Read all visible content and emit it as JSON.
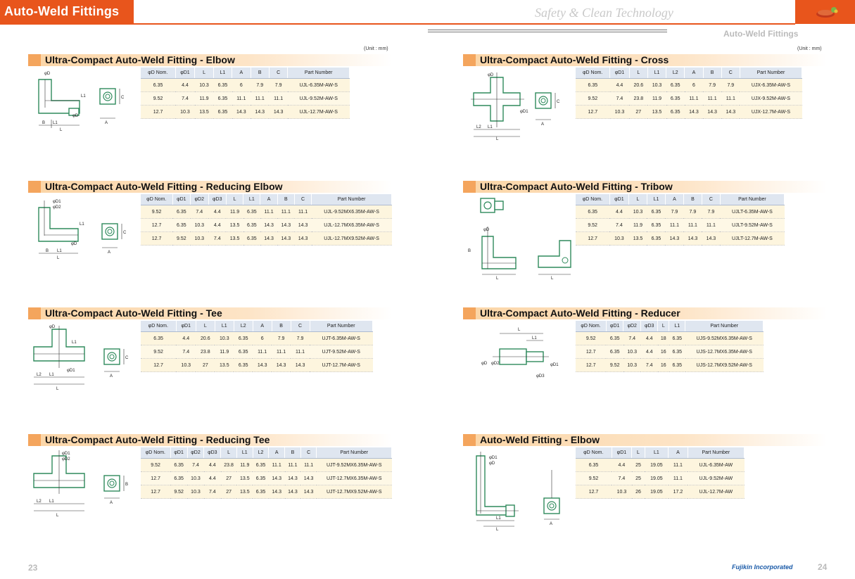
{
  "header": {
    "tab_title": "Auto-Weld Fittings",
    "tagline": "Safety & Clean Technology",
    "right_running_title": "Auto-Weld Fittings",
    "colors": {
      "accent": "#e8551c",
      "section_bar": "#f4a55d",
      "section_fill": "#fbd5a6",
      "table_header": "#dfe6f0",
      "table_row": "#fdf5de"
    },
    "logo_icon": "product-logo-icon"
  },
  "unit_label": "(Unit : mm)",
  "sections": [
    {
      "title": "Ultra-Compact Auto-Weld Fitting - Elbow",
      "columns": [
        "φD Nom.",
        "φD1",
        "L",
        "L1",
        "A",
        "B",
        "C",
        "Part Number"
      ],
      "rows": [
        [
          "6.35",
          "4.4",
          "10.3",
          "6.35",
          "6",
          "7.9",
          "7.9",
          "UJL-6.35M-AW-S"
        ],
        [
          "9.52",
          "7.4",
          "11.9",
          "6.35",
          "11.1",
          "11.1",
          "11.1",
          "UJL-9.52M-AW-S"
        ],
        [
          "12.7",
          "10.3",
          "13.5",
          "6.35",
          "14.3",
          "14.3",
          "14.3",
          "UJL-12.7M-AW-S"
        ]
      ]
    },
    {
      "title": "Ultra-Compact Auto-Weld Fitting - Reducing Elbow",
      "columns": [
        "φD Nom.",
        "φD1",
        "φD2",
        "φD3",
        "L",
        "L1",
        "A",
        "B",
        "C",
        "Part Number"
      ],
      "rows": [
        [
          "9.52",
          "6.35",
          "7.4",
          "4.4",
          "11.9",
          "6.35",
          "11.1",
          "11.1",
          "11.1",
          "UJL-9.52MX6.35M-AW-S"
        ],
        [
          "12.7",
          "6.35",
          "10.3",
          "4.4",
          "13.5",
          "6.35",
          "14.3",
          "14.3",
          "14.3",
          "UJL-12.7MX6.35M-AW-S"
        ],
        [
          "12.7",
          "9.52",
          "10.3",
          "7.4",
          "13.5",
          "6.35",
          "14.3",
          "14.3",
          "14.3",
          "UJL-12.7MX9.52M-AW-S"
        ]
      ]
    },
    {
      "title": "Ultra-Compact Auto-Weld Fitting - Tee",
      "columns": [
        "φD Nom.",
        "φD1",
        "L",
        "L1",
        "L2",
        "A",
        "B",
        "C",
        "Part Number"
      ],
      "rows": [
        [
          "6.35",
          "4.4",
          "20.6",
          "10.3",
          "6.35",
          "6",
          "7.9",
          "7.9",
          "UJT-6.35M-AW-S"
        ],
        [
          "9.52",
          "7.4",
          "23.8",
          "11.9",
          "6.35",
          "11.1",
          "11.1",
          "11.1",
          "UJT-9.52M-AW-S"
        ],
        [
          "12.7",
          "10.3",
          "27",
          "13.5",
          "6.35",
          "14.3",
          "14.3",
          "14.3",
          "UJT-12.7M-AW-S"
        ]
      ]
    },
    {
      "title": "Ultra-Compact Auto-Weld Fitting - Reducing Tee",
      "columns": [
        "φD Nom.",
        "φD1",
        "φD2",
        "φD3",
        "L",
        "L1",
        "L2",
        "A",
        "B",
        "C",
        "Part Number"
      ],
      "rows": [
        [
          "9.52",
          "6.35",
          "7.4",
          "4.4",
          "23.8",
          "11.9",
          "6.35",
          "11.1",
          "11.1",
          "11.1",
          "UJT-9.52MX6.35M-AW-S"
        ],
        [
          "12.7",
          "6.35",
          "10.3",
          "4.4",
          "27",
          "13.5",
          "6.35",
          "14.3",
          "14.3",
          "14.3",
          "UJT-12.7MX6.35M-AW-S"
        ],
        [
          "12.7",
          "9.52",
          "10.3",
          "7.4",
          "27",
          "13.5",
          "6.35",
          "14.3",
          "14.3",
          "14.3",
          "UJT-12.7MX9.52M-AW-S"
        ]
      ]
    },
    {
      "title": "Ultra-Compact Auto-Weld Fitting - Cross",
      "columns": [
        "φD Nom.",
        "φD1",
        "L",
        "L1",
        "L2",
        "A",
        "B",
        "C",
        "Part Number"
      ],
      "rows": [
        [
          "6.35",
          "4.4",
          "20.6",
          "10.3",
          "6.35",
          "6",
          "7.9",
          "7.9",
          "UJX-6.35M-AW-S"
        ],
        [
          "9.52",
          "7.4",
          "23.8",
          "11.9",
          "6.35",
          "11.1",
          "11.1",
          "11.1",
          "UJX-9.52M-AW-S"
        ],
        [
          "12.7",
          "10.3",
          "27",
          "13.5",
          "6.35",
          "14.3",
          "14.3",
          "14.3",
          "UJX-12.7M-AW-S"
        ]
      ]
    },
    {
      "title": "Ultra-Compact Auto-Weld Fitting - Tribow",
      "columns": [
        "φD Nom.",
        "φD1",
        "L",
        "L1",
        "A",
        "B",
        "C",
        "Part Number"
      ],
      "rows": [
        [
          "6.35",
          "4.4",
          "10.3",
          "6.35",
          "7.9",
          "7.9",
          "7.9",
          "UJLT-6.35M-AW-S"
        ],
        [
          "9.52",
          "7.4",
          "11.9",
          "6.35",
          "11.1",
          "11.1",
          "11.1",
          "UJLT-9.52M-AW-S"
        ],
        [
          "12.7",
          "10.3",
          "13.5",
          "6.35",
          "14.3",
          "14.3",
          "14.3",
          "UJLT-12.7M-AW-S"
        ]
      ]
    },
    {
      "title": "Ultra-Compact Auto-Weld Fitting - Reducer",
      "columns": [
        "φD Nom.",
        "φD1",
        "φD2",
        "φD3",
        "L",
        "L1",
        "Part Number"
      ],
      "rows": [
        [
          "9.52",
          "6.35",
          "7.4",
          "4.4",
          "18",
          "6.35",
          "UJS-9.52MX6.35M-AW-S"
        ],
        [
          "12.7",
          "6.35",
          "10.3",
          "4.4",
          "16",
          "6.35",
          "UJS-12.7MX6.35M-AW-S"
        ],
        [
          "12.7",
          "9.52",
          "10.3",
          "7.4",
          "16",
          "6.35",
          "UJS-12.7MX9.52M-AW-S"
        ]
      ]
    },
    {
      "title": "Auto-Weld Fitting - Elbow",
      "columns": [
        "φD Nom.",
        "φD1",
        "L",
        "L1",
        "A",
        "Part Number"
      ],
      "rows": [
        [
          "6.35",
          "4.4",
          "25",
          "19.05",
          "11.1",
          "UJL-6.35M-AW"
        ],
        [
          "9.52",
          "7.4",
          "25",
          "19.05",
          "11.1",
          "UJL-9.52M-AW"
        ],
        [
          "12.7",
          "10.3",
          "26",
          "19.05",
          "17.2",
          "UJL-12.7M-AW"
        ]
      ]
    }
  ],
  "footer": {
    "page_left": "23",
    "company": "Fujikin Incorporated",
    "page_right": "24"
  }
}
